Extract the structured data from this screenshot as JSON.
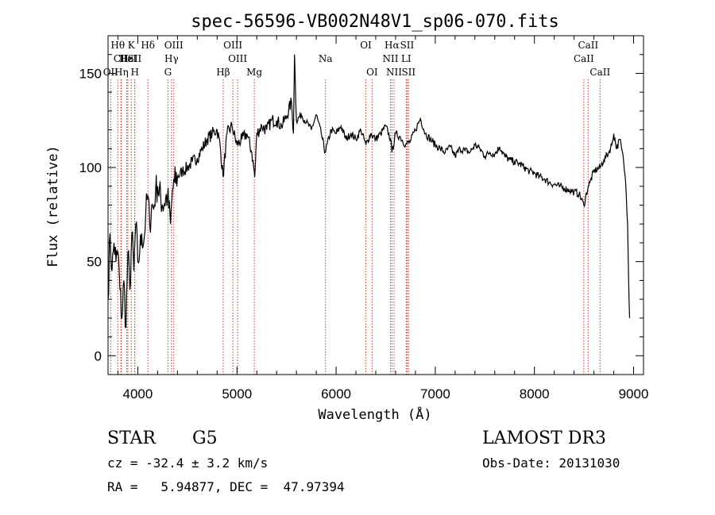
{
  "chart_data": {
    "type": "line",
    "title": "spec-56596-VB002N48V1_sp06-070.fits",
    "xlabel": "Wavelength (Å)",
    "ylabel": "Flux (relative)",
    "xlim": [
      3700,
      9100
    ],
    "ylim": [
      -10,
      170
    ],
    "xticks": [
      4000,
      5000,
      6000,
      7000,
      8000,
      9000
    ],
    "yticks": [
      0,
      50,
      100,
      150
    ],
    "series": [
      {
        "name": "spectrum",
        "x": [
          3700,
          3720,
          3740,
          3760,
          3780,
          3800,
          3820,
          3840,
          3860,
          3880,
          3900,
          3920,
          3940,
          3960,
          3980,
          4000,
          4020,
          4040,
          4060,
          4080,
          4100,
          4120,
          4140,
          4160,
          4180,
          4200,
          4250,
          4300,
          4330,
          4350,
          4370,
          4400,
          4450,
          4500,
          4550,
          4600,
          4650,
          4700,
          4750,
          4800,
          4830,
          4860,
          4900,
          4950,
          5000,
          5050,
          5100,
          5150,
          5180,
          5200,
          5250,
          5300,
          5350,
          5400,
          5450,
          5500,
          5550,
          5570,
          5580,
          5600,
          5650,
          5700,
          5750,
          5800,
          5850,
          5890,
          5950,
          6000,
          6050,
          6100,
          6150,
          6200,
          6250,
          6300,
          6350,
          6400,
          6450,
          6500,
          6550,
          6563,
          6600,
          6650,
          6700,
          6750,
          6800,
          6850,
          6900,
          6950,
          7000,
          7050,
          7100,
          7150,
          7200,
          7250,
          7300,
          7350,
          7400,
          7450,
          7500,
          7550,
          7600,
          7650,
          7700,
          7750,
          7800,
          7850,
          7900,
          7950,
          8000,
          8050,
          8100,
          8150,
          8200,
          8250,
          8300,
          8350,
          8400,
          8450,
          8498,
          8542,
          8560,
          8600,
          8662,
          8700,
          8750,
          8780,
          8800,
          8830,
          8860,
          8880,
          8900,
          8920,
          8940,
          8950,
          8960
        ],
        "values": [
          30,
          65,
          45,
          60,
          50,
          55,
          35,
          20,
          40,
          15,
          55,
          35,
          65,
          45,
          70,
          50,
          55,
          65,
          60,
          75,
          85,
          70,
          80,
          78,
          88,
          90,
          80,
          85,
          70,
          88,
          92,
          95,
          98,
          100,
          103,
          105,
          110,
          115,
          118,
          120,
          112,
          95,
          118,
          122,
          112,
          115,
          118,
          108,
          95,
          118,
          122,
          120,
          125,
          125,
          122,
          127,
          135,
          118,
          160,
          125,
          128,
          124,
          120,
          128,
          118,
          108,
          120,
          118,
          122,
          115,
          118,
          115,
          120,
          112,
          118,
          115,
          118,
          122,
          115,
          108,
          118,
          116,
          112,
          114,
          120,
          126,
          118,
          115,
          112,
          110,
          108,
          111,
          106,
          110,
          109,
          108,
          112,
          110,
          106,
          108,
          107,
          111,
          106,
          104,
          103,
          102,
          100,
          98,
          97,
          95,
          94,
          92,
          91,
          90,
          89,
          88,
          87,
          86,
          80,
          90,
          92,
          98,
          100,
          104,
          108,
          112,
          118,
          110,
          115,
          110,
          103,
          92,
          70,
          40,
          20
        ]
      }
    ],
    "lines": [
      {
        "name": "Hθ",
        "wave": 3798,
        "row": 0
      },
      {
        "name": "CII",
        "wave": 3830,
        "row": 1
      },
      {
        "name": "OII",
        "wave": 3727,
        "row": 2
      },
      {
        "name": "Hε",
        "wave": 3889,
        "row": 1
      },
      {
        "name": "HeI",
        "wave": 3900,
        "row": 1
      },
      {
        "name": "Hη",
        "wave": 3835,
        "row": 2
      },
      {
        "name": "K",
        "wave": 3934,
        "row": 0
      },
      {
        "name": "SII",
        "wave": 3968,
        "row": 1
      },
      {
        "name": "H",
        "wave": 3970,
        "row": 2
      },
      {
        "name": "Hδ",
        "wave": 4102,
        "row": 0
      },
      {
        "name": "OIII",
        "wave": 4363,
        "row": 0
      },
      {
        "name": "Hγ",
        "wave": 4340,
        "row": 1
      },
      {
        "name": "G",
        "wave": 4304,
        "row": 2
      },
      {
        "name": "Hβ",
        "wave": 4861,
        "row": 2
      },
      {
        "name": "OIII",
        "wave": 4959,
        "row": 0
      },
      {
        "name": "OIII",
        "wave": 5007,
        "row": 1
      },
      {
        "name": "Mg",
        "wave": 5175,
        "row": 2
      },
      {
        "name": "Na",
        "wave": 5893,
        "row": 1
      },
      {
        "name": "OI",
        "wave": 6300,
        "row": 0
      },
      {
        "name": "OI",
        "wave": 6363,
        "row": 2
      },
      {
        "name": "Hα",
        "wave": 6563,
        "row": 0
      },
      {
        "name": "SII",
        "wave": 6716,
        "row": 0
      },
      {
        "name": "NII",
        "wave": 6548,
        "row": 1
      },
      {
        "name": "LI",
        "wave": 6707,
        "row": 1
      },
      {
        "name": "NII",
        "wave": 6584,
        "row": 2
      },
      {
        "name": "SII",
        "wave": 6731,
        "row": 2
      },
      {
        "name": "CaII",
        "wave": 8542,
        "row": 0
      },
      {
        "name": "CaII",
        "wave": 8498,
        "row": 1
      },
      {
        "name": "CaII",
        "wave": 8662,
        "row": 2
      }
    ]
  },
  "info": {
    "class_label": "STAR",
    "subclass": "G5",
    "survey": "LAMOST DR3",
    "cz": "cz = -32.4 ± 3.2 km/s",
    "obs_date": "Obs-Date: 20131030",
    "radec": "RA =   5.94877, DEC =  47.97394"
  },
  "colors": {
    "axis": "#000000",
    "spectrum": "#000000",
    "marker": "#c0392b"
  }
}
